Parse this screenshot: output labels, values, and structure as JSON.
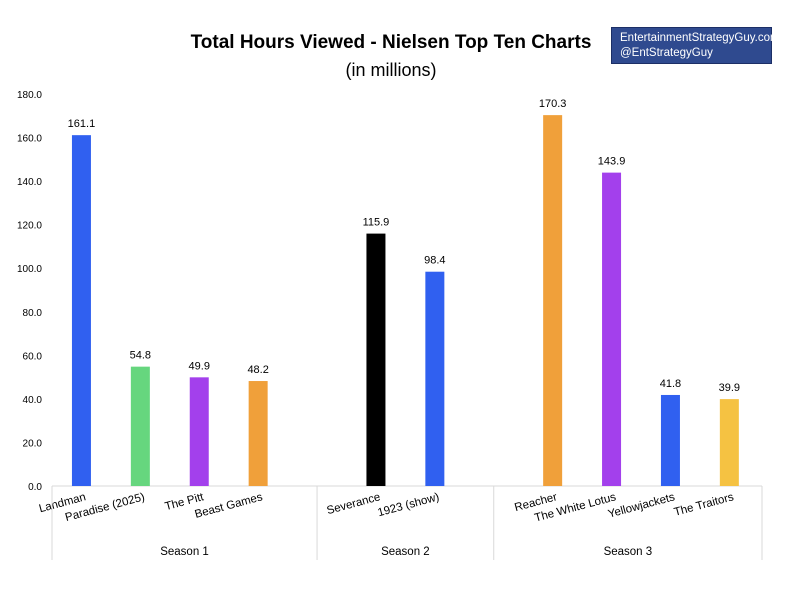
{
  "chart_data": {
    "type": "bar",
    "title": "Total Hours Viewed - Nielsen Top Ten Charts",
    "subtitle": "(in millions)",
    "xlabel": "",
    "ylabel": "",
    "ylim": [
      0,
      180
    ],
    "yticks": [
      "0.0",
      "20.0",
      "40.0",
      "60.0",
      "80.0",
      "100.0",
      "120.0",
      "140.0",
      "160.0",
      "180.0"
    ],
    "grid": false,
    "groups": [
      {
        "name": "Season 1",
        "bars": [
          {
            "label": "Landman",
            "value": 161.1,
            "value_label": "161.1",
            "color": "#3060f0"
          },
          {
            "label": "Paradise (2025)",
            "value": 54.8,
            "value_label": "54.8",
            "color": "#66d67e"
          },
          {
            "label": "The Pitt",
            "value": 49.9,
            "value_label": "49.9",
            "color": "#a340ec"
          },
          {
            "label": "Beast Games",
            "value": 48.2,
            "value_label": "48.2",
            "color": "#f0a03a"
          }
        ]
      },
      {
        "name": "Season 2",
        "bars": [
          {
            "label": "Severance",
            "value": 115.9,
            "value_label": "115.9",
            "color": "#000000"
          },
          {
            "label": "1923 (show)",
            "value": 98.4,
            "value_label": "98.4",
            "color": "#3060f0"
          }
        ]
      },
      {
        "name": "Season 3",
        "bars": [
          {
            "label": "Reacher",
            "value": 170.3,
            "value_label": "170.3",
            "color": "#f0a03a"
          },
          {
            "label": "The White Lotus",
            "value": 143.9,
            "value_label": "143.9",
            "color": "#a340ec"
          },
          {
            "label": "Yellowjackets",
            "value": 41.8,
            "value_label": "41.8",
            "color": "#3060f0"
          },
          {
            "label": "The Traitors",
            "value": 39.9,
            "value_label": "39.9",
            "color": "#f5c242"
          }
        ]
      }
    ]
  },
  "credit": {
    "line1": "EntertainmentStrategyGuy.com",
    "line2": "@EntStrategyGuy",
    "background": "#2f4a8f"
  }
}
